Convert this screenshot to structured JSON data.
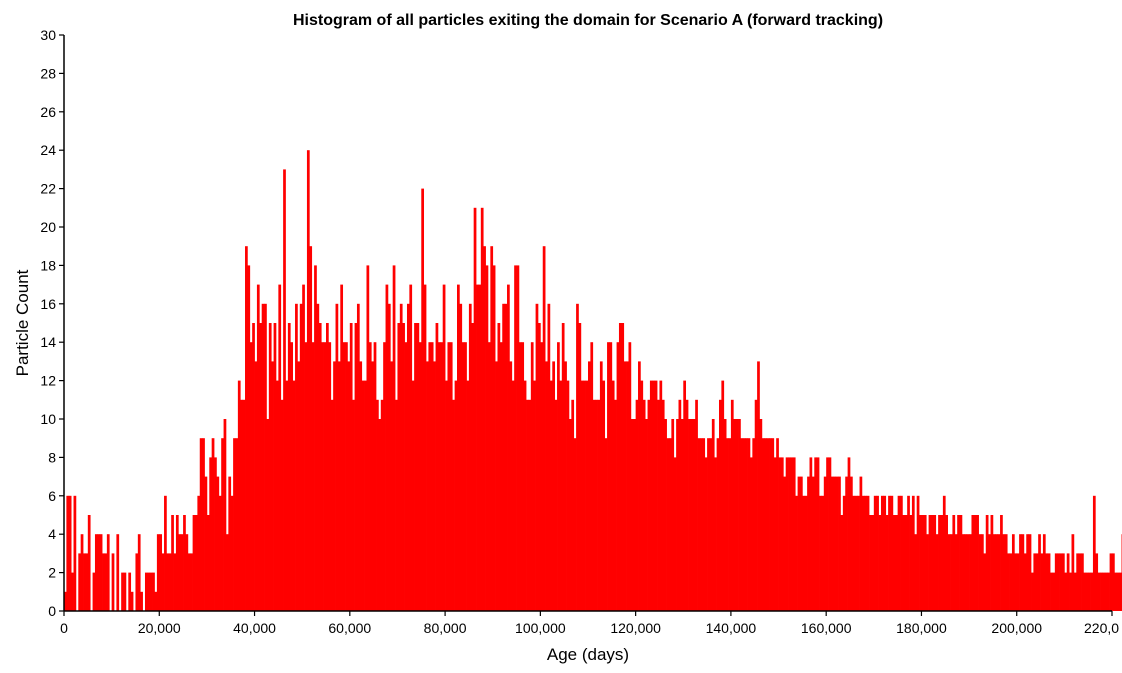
{
  "chart_data": {
    "type": "bar",
    "title": "Histogram of all particles exiting the domain for Scenario A (forward tracking)",
    "xlabel": "Age (days)",
    "ylabel": "Particle Count",
    "xlim": [
      0,
      220000
    ],
    "ylim": [
      0,
      30
    ],
    "xticks": [
      "0",
      "20,000",
      "40,000",
      "60,000",
      "80,000",
      "100,000",
      "120,000",
      "140,000",
      "160,000",
      "180,000",
      "200,000",
      "220,0"
    ],
    "yticks": [
      "0",
      "2",
      "4",
      "6",
      "8",
      "10",
      "12",
      "14",
      "16",
      "18",
      "20",
      "22",
      "24",
      "26",
      "28",
      "30"
    ],
    "bar_color": "#ff0000",
    "bin_width": 500,
    "bins_start": 0,
    "grid": false,
    "legend": "none",
    "values": [
      1,
      6,
      6,
      2,
      6,
      0,
      3,
      4,
      3,
      3,
      5,
      0,
      2,
      4,
      4,
      4,
      3,
      3,
      4,
      0,
      3,
      0,
      4,
      0,
      2,
      2,
      0,
      2,
      1,
      0,
      3,
      4,
      1,
      0,
      2,
      2,
      2,
      2,
      1,
      4,
      4,
      3,
      6,
      3,
      3,
      5,
      3,
      5,
      4,
      4,
      5,
      4,
      3,
      3,
      5,
      5,
      6,
      9,
      9,
      7,
      5,
      8,
      9,
      8,
      7,
      6,
      9,
      10,
      4,
      7,
      6,
      9,
      9,
      12,
      11,
      11,
      19,
      18,
      14,
      15,
      13,
      17,
      15,
      16,
      16,
      10,
      15,
      13,
      15,
      12,
      17,
      11,
      23,
      12,
      15,
      14,
      12,
      16,
      13,
      16,
      17,
      14,
      24,
      19,
      14,
      18,
      16,
      15,
      14,
      14,
      15,
      14,
      11,
      13,
      16,
      13,
      17,
      14,
      14,
      13,
      15,
      11,
      15,
      16,
      13,
      12,
      12,
      18,
      14,
      13,
      14,
      11,
      10,
      11,
      14,
      17,
      16,
      13,
      18,
      11,
      15,
      16,
      15,
      14,
      16,
      17,
      12,
      15,
      15,
      14,
      22,
      17,
      13,
      14,
      14,
      13,
      15,
      14,
      14,
      17,
      12,
      14,
      14,
      11,
      12,
      17,
      16,
      14,
      14,
      12,
      16,
      15,
      21,
      17,
      17,
      21,
      19,
      18,
      14,
      19,
      18,
      13,
      15,
      14,
      16,
      16,
      17,
      13,
      12,
      18,
      18,
      14,
      14,
      12,
      11,
      11,
      14,
      12,
      16,
      15,
      14,
      19,
      13,
      16,
      12,
      13,
      11,
      14,
      12,
      15,
      13,
      12,
      10,
      11,
      9,
      16,
      15,
      12,
      12,
      12,
      13,
      14,
      11,
      11,
      11,
      13,
      12,
      9,
      14,
      14,
      12,
      11,
      14,
      15,
      15,
      13,
      13,
      14,
      10,
      10,
      11,
      13,
      12,
      11,
      10,
      11,
      12,
      12,
      12,
      11,
      12,
      11,
      10,
      9,
      9,
      10,
      8,
      10,
      11,
      10,
      12,
      11,
      10,
      10,
      10,
      11,
      9,
      9,
      9,
      8,
      9,
      9,
      10,
      8,
      9,
      11,
      12,
      10,
      9,
      9,
      11,
      10,
      10,
      10,
      9,
      9,
      9,
      9,
      8,
      9,
      11,
      13,
      10,
      9,
      9,
      9,
      9,
      9,
      8,
      9,
      8,
      8,
      7,
      8,
      8,
      8,
      8,
      6,
      7,
      7,
      6,
      6,
      7,
      8,
      7,
      8,
      8,
      6,
      6,
      7,
      8,
      8,
      7,
      7,
      7,
      7,
      5,
      6,
      7,
      8,
      7,
      6,
      6,
      6,
      7,
      6,
      6,
      6,
      5,
      5,
      6,
      6,
      5,
      6,
      6,
      5,
      6,
      6,
      5,
      5,
      6,
      6,
      5,
      5,
      6,
      5,
      6,
      4,
      6,
      5,
      5,
      5,
      4,
      5,
      5,
      5,
      4,
      5,
      5,
      6,
      5,
      4,
      4,
      5,
      4,
      5,
      5,
      4,
      4,
      4,
      4,
      5,
      5,
      5,
      4,
      4,
      3,
      5,
      4,
      5,
      4,
      4,
      4,
      5,
      4,
      4,
      3,
      3,
      4,
      3,
      3,
      4,
      4,
      3,
      4,
      4,
      2,
      3,
      3,
      4,
      3,
      4,
      3,
      3,
      2,
      2,
      3,
      3,
      3,
      3,
      2,
      3,
      2,
      4,
      2,
      3,
      3,
      3,
      2,
      2,
      2,
      2,
      6,
      3,
      2,
      2,
      2,
      2,
      2,
      3,
      3,
      2,
      2,
      2,
      4,
      2,
      2,
      2,
      1,
      1,
      1,
      1
    ]
  }
}
